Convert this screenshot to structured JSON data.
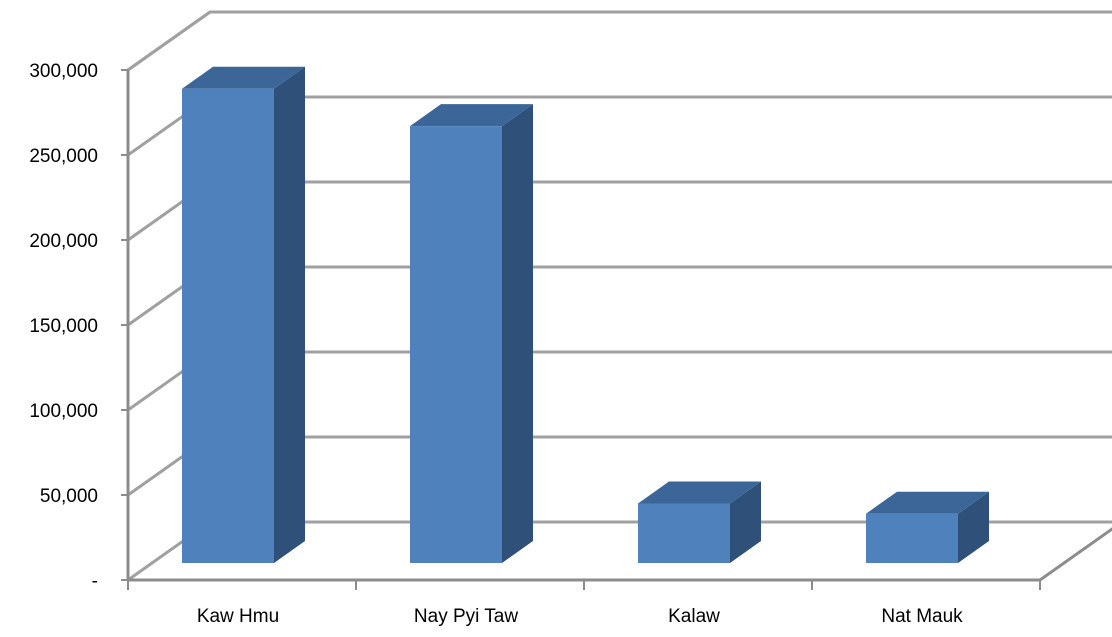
{
  "chart_data": {
    "type": "bar",
    "style": "3d-column",
    "categories": [
      "Kaw Hmu",
      "Nay Pyi Taw",
      "Kalaw",
      "Nat Mauk"
    ],
    "series": [
      {
        "values": [
          279000,
          257000,
          35000,
          29000
        ]
      }
    ],
    "ylim": [
      0,
      300000
    ],
    "yticks": [
      0,
      50000,
      100000,
      150000,
      200000,
      250000,
      300000
    ],
    "ytick_labels": [
      "-",
      "50,000",
      "100,000",
      "150,000",
      "200,000",
      "250,000",
      "300,000"
    ],
    "grid": true,
    "legend": "none",
    "colors": {
      "bar_front": "#4f81bd",
      "bar_side": "#2f5179",
      "bar_top": "#3c6697",
      "gridline": "#a0a0a0",
      "axis": "#8c8c8c"
    }
  }
}
